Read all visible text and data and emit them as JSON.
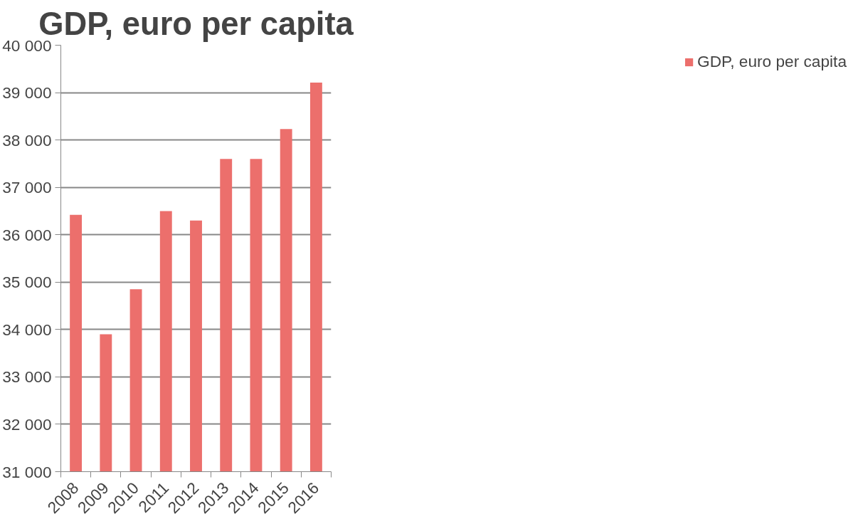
{
  "chart_data": {
    "type": "bar",
    "title": "GDP, euro per capita",
    "categories": [
      "2008",
      "2009",
      "2010",
      "2011",
      "2012",
      "2013",
      "2014",
      "2015",
      "2016"
    ],
    "series": [
      {
        "name": "GDP, euro per capita",
        "color": "#ec6f6c",
        "values": [
          36420,
          33900,
          34850,
          36500,
          36300,
          37600,
          37600,
          38230,
          39210
        ]
      }
    ],
    "ylim": [
      31000,
      40000
    ],
    "yticks": [
      {
        "value": 31000,
        "label": "31 000"
      },
      {
        "value": 32000,
        "label": "32 000"
      },
      {
        "value": 33000,
        "label": "33 000"
      },
      {
        "value": 34000,
        "label": "34 000"
      },
      {
        "value": 35000,
        "label": "35 000"
      },
      {
        "value": 36000,
        "label": "36 000"
      },
      {
        "value": 37000,
        "label": "37 000"
      },
      {
        "value": 38000,
        "label": "38 000"
      },
      {
        "value": 39000,
        "label": "39 000"
      },
      {
        "value": 40000,
        "label": "40 000"
      }
    ],
    "grid": "y",
    "legend": "right"
  }
}
